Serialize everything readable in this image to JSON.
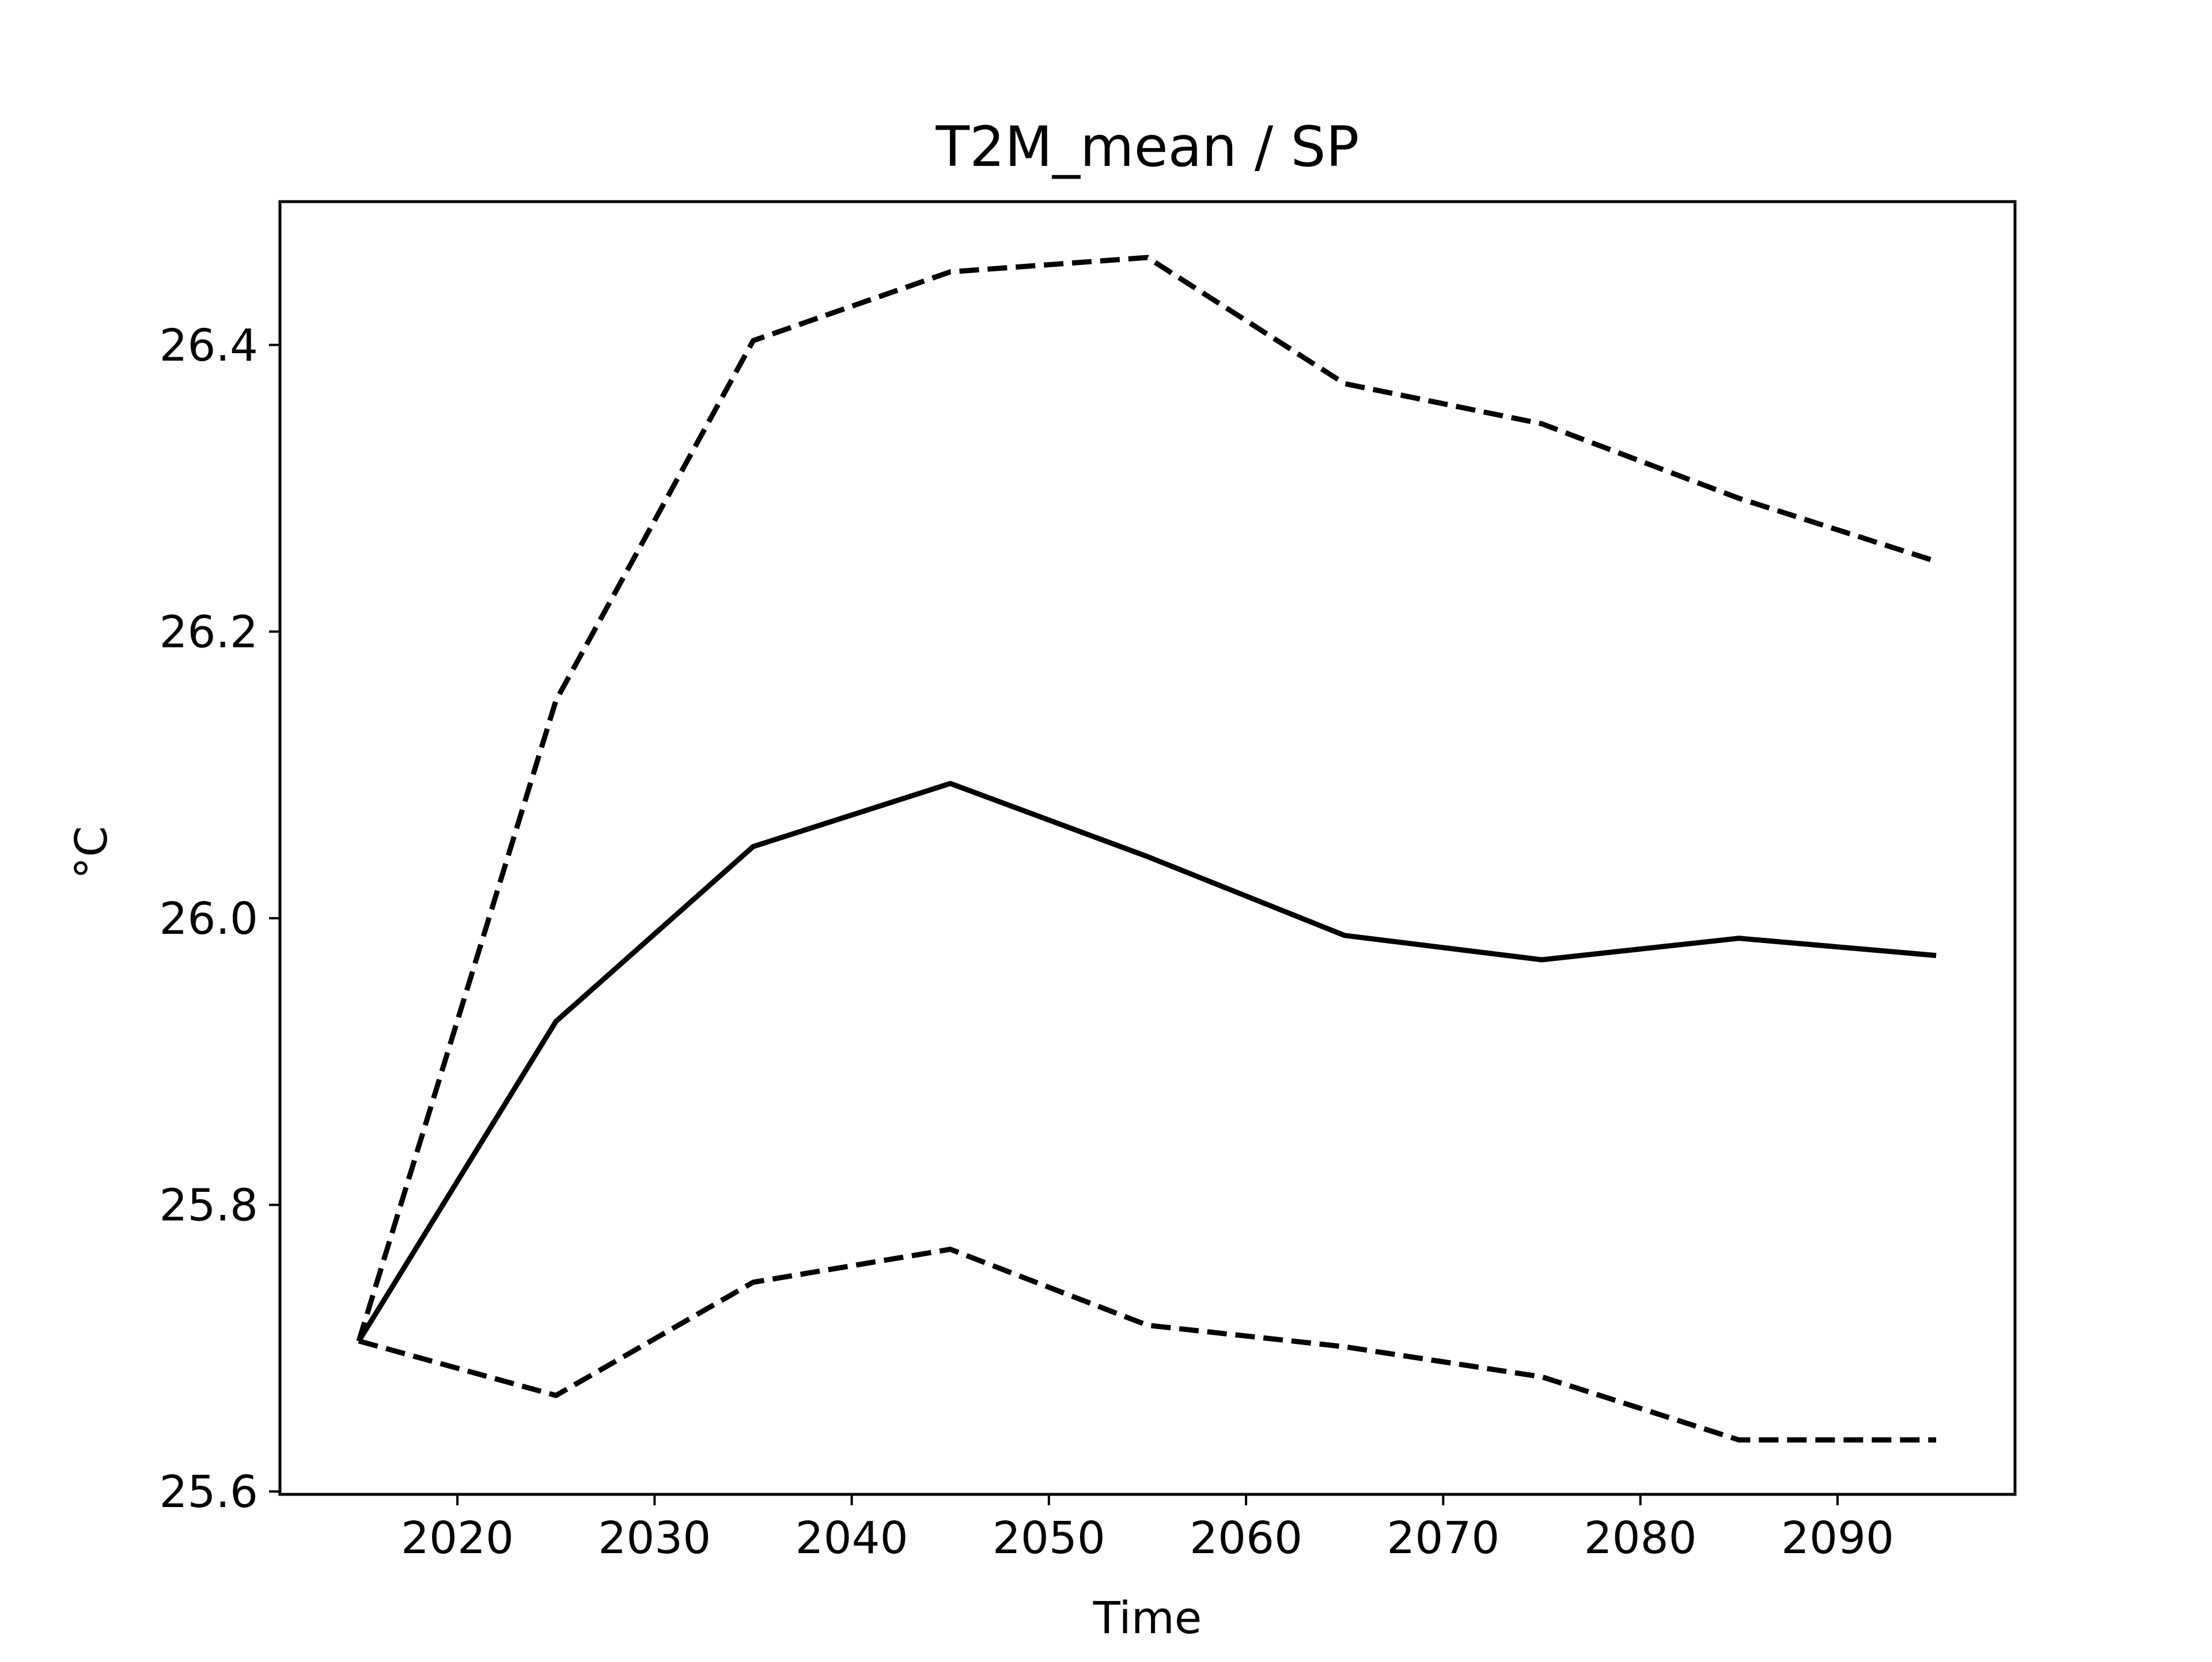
{
  "chart_data": {
    "type": "line",
    "title": "T2M_mean / SP",
    "xlabel": "Time",
    "ylabel": "°C",
    "xlim": [
      2011,
      2099
    ],
    "ylim": [
      25.598,
      26.5
    ],
    "x_ticks": [
      2020,
      2030,
      2040,
      2050,
      2060,
      2070,
      2080,
      2090
    ],
    "y_ticks": [
      25.6,
      25.8,
      26.0,
      26.2,
      26.4
    ],
    "y_tick_labels": [
      "25.6",
      "25.8",
      "26.0",
      "26.2",
      "26.4"
    ],
    "grid": false,
    "x": [
      2015,
      2025,
      2035,
      2045,
      2055,
      2065,
      2075,
      2085,
      2095
    ],
    "series": [
      {
        "style": "solid",
        "color": "#000000",
        "values": [
          25.705,
          25.928,
          26.05,
          26.094,
          26.043,
          25.988,
          25.971,
          25.986,
          25.974
        ]
      },
      {
        "style": "dashed",
        "color": "#000000",
        "values": [
          25.705,
          26.152,
          26.403,
          26.451,
          26.461,
          26.373,
          26.345,
          26.293,
          26.249
        ]
      },
      {
        "style": "dashed",
        "color": "#000000",
        "values": [
          25.705,
          25.667,
          25.746,
          25.769,
          25.716,
          25.701,
          25.68,
          25.636,
          25.636
        ]
      }
    ]
  }
}
